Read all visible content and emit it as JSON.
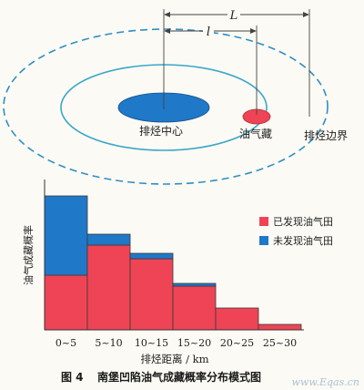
{
  "diagram": {
    "dimension_L": "L",
    "dimension_l": "l",
    "center_label": "排烃中心",
    "reservoir_label": "油气藏",
    "boundary_label": "排烃边界",
    "colors": {
      "outer_dashed": "#2e8fc4",
      "ring": "#3aa7c9",
      "center_fill": "#1f78c8",
      "reservoir_fill": "#ee4455",
      "lines": "#444444"
    }
  },
  "chart_data": {
    "type": "bar",
    "stacked": true,
    "categories": [
      "0~5",
      "5~10",
      "10~15",
      "15~20",
      "20~25",
      "25~30"
    ],
    "series": [
      {
        "name": "已发现油气田",
        "values": [
          20,
          31,
          26,
          16,
          8,
          2
        ],
        "color": "#ee4455"
      },
      {
        "name": "未发现油气田",
        "values": [
          29,
          4,
          2,
          1,
          0,
          0
        ],
        "color": "#1f78c8"
      }
    ],
    "ylim": [
      0,
      53
    ],
    "xlabel": "排烃距离 / km",
    "ylabel": "油气成藏概率",
    "legend_position": "right"
  },
  "caption": {
    "figure_number": "图 4",
    "title": "南堡凹陷油气成藏概率分布模式图"
  },
  "watermark": "www.Eqas.cn"
}
